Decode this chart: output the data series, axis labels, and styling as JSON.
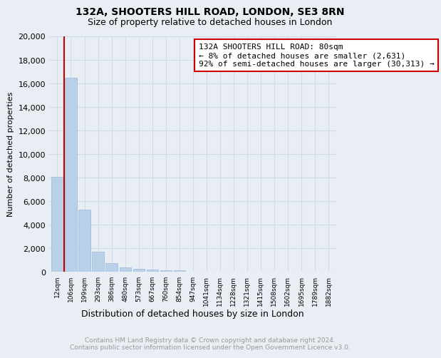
{
  "title": "132A, SHOOTERS HILL ROAD, LONDON, SE3 8RN",
  "subtitle": "Size of property relative to detached houses in London",
  "xlabel": "Distribution of detached houses by size in London",
  "ylabel": "Number of detached properties",
  "categories": [
    "12sqm",
    "106sqm",
    "199sqm",
    "293sqm",
    "386sqm",
    "480sqm",
    "573sqm",
    "667sqm",
    "760sqm",
    "854sqm",
    "947sqm",
    "1041sqm",
    "1134sqm",
    "1228sqm",
    "1321sqm",
    "1415sqm",
    "1508sqm",
    "1602sqm",
    "1695sqm",
    "1789sqm",
    "1882sqm"
  ],
  "values": [
    8100,
    16500,
    5300,
    1750,
    750,
    370,
    250,
    200,
    170,
    150,
    0,
    0,
    0,
    0,
    0,
    0,
    0,
    0,
    0,
    0,
    0
  ],
  "bar_color": "#b8d0e8",
  "bar_edge_color": "#9ab8d8",
  "annotation_title": "132A SHOOTERS HILL ROAD: 80sqm",
  "annotation_line1": "← 8% of detached houses are smaller (2,631)",
  "annotation_line2": "92% of semi-detached houses are larger (30,313) →",
  "annotation_box_facecolor": "#ffffff",
  "annotation_box_edgecolor": "#cc0000",
  "vline_color": "#cc0000",
  "vline_x": 0.5,
  "ylim": [
    0,
    20000
  ],
  "yticks": [
    0,
    2000,
    4000,
    6000,
    8000,
    10000,
    12000,
    14000,
    16000,
    18000,
    20000
  ],
  "grid_color": "#d0dce8",
  "background_color": "#e8eef4",
  "footer_line1": "Contains HM Land Registry data © Crown copyright and database right 2024.",
  "footer_line2": "Contains public sector information licensed under the Open Government Licence v3.0.",
  "footer_color": "#999999",
  "title_fontsize": 10,
  "subtitle_fontsize": 9,
  "ylabel_fontsize": 8,
  "xlabel_fontsize": 9,
  "ytick_fontsize": 8,
  "xtick_fontsize": 6.5
}
